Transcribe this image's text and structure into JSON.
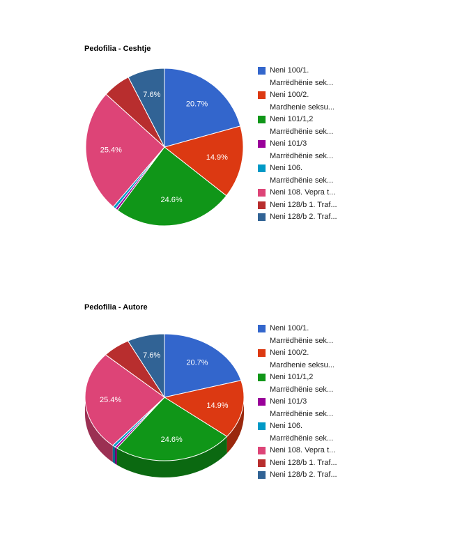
{
  "chart_data": [
    {
      "type": "pie",
      "is3D": false,
      "title": "Pedofilia - Ceshtje",
      "categories": [
        "Neni 100/1. Marrëdhënie sek...",
        "Neni 100/2. Mardhenie seksu...",
        "Neni 101/1,2 Marrëdhënie sek...",
        "Neni 101/3 Marrëdhënie sek...",
        "Neni 106. Marrëdhënie sek...",
        "Neni 108. Vepra t...",
        "Neni 128/b 1. Traf...",
        "Neni 128/b 2. Traf..."
      ],
      "values": [
        20.7,
        14.9,
        24.6,
        0.5,
        0.6,
        25.4,
        5.7,
        7.6
      ],
      "value_labels": [
        "20.7%",
        "14.9%",
        "24.6%",
        null,
        null,
        "25.4%",
        null,
        "7.6%"
      ],
      "colors": [
        "#3366cc",
        "#dc3912",
        "#109618",
        "#990099",
        "#0099c6",
        "#dd4477",
        "#b82e2e",
        "#316395"
      ]
    },
    {
      "type": "pie",
      "is3D": true,
      "title": "Pedofilia - Autore",
      "categories": [
        "Neni 100/1. Marrëdhënie sek...",
        "Neni 100/2. Mardhenie seksu...",
        "Neni 101/1,2 Marrëdhënie sek...",
        "Neni 101/3 Marrëdhënie sek...",
        "Neni 106. Marrëdhënie sek...",
        "Neni 108. Vepra t...",
        "Neni 128/b 1. Traf...",
        "Neni 128/b 2. Traf..."
      ],
      "values": [
        20.7,
        14.9,
        24.6,
        0.5,
        0.6,
        25.4,
        5.7,
        7.6
      ],
      "value_labels": [
        "20.7%",
        "14.9%",
        "24.6%",
        null,
        null,
        "25.4%",
        null,
        "7.6%"
      ],
      "colors": [
        "#3366cc",
        "#dc3912",
        "#109618",
        "#990099",
        "#0099c6",
        "#dd4477",
        "#b82e2e",
        "#316395"
      ]
    }
  ]
}
